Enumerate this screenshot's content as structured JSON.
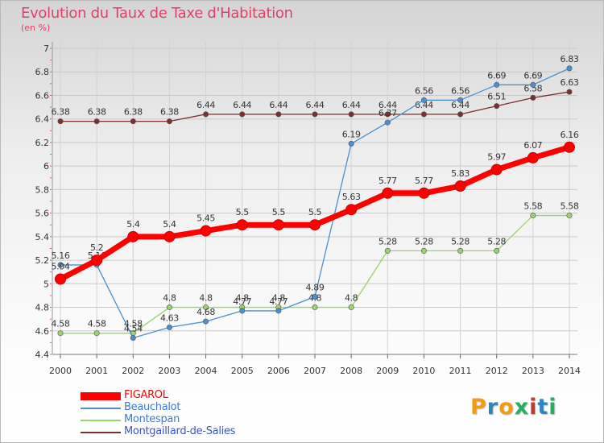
{
  "header": {
    "title": "Evolution du Taux de Taxe d'Habitation",
    "unit": "(en %)"
  },
  "logo": {
    "letters": [
      "P",
      "r",
      "o",
      "x",
      "i",
      "t",
      "i"
    ],
    "colors": [
      "#f39c12",
      "#2e86c1",
      "#f39c12",
      "#27ae60",
      "#c0392b",
      "#2e86c1",
      "#27ae60"
    ]
  },
  "chart_data": {
    "type": "line",
    "title": "Evolution du Taux de Taxe d'Habitation",
    "ylabel": "(en %)",
    "xlabel": "",
    "ylim": [
      4.4,
      7.0
    ],
    "yticks": [
      "4.4",
      "4.6",
      "4.8",
      "5",
      "5.2",
      "5.4",
      "5.6",
      "5.8",
      "6",
      "6.2",
      "6.4",
      "6.6",
      "6.8",
      "7"
    ],
    "grid": true,
    "legend_position": "bottom-left",
    "x": [
      2000,
      2001,
      2002,
      2003,
      2004,
      2005,
      2006,
      2007,
      2008,
      2009,
      2010,
      2011,
      2012,
      2013,
      2014
    ],
    "series": [
      {
        "name": "FIGAROL",
        "color": "#ff0000",
        "values": [
          5.04,
          5.2,
          5.4,
          5.4,
          5.45,
          5.5,
          5.5,
          5.5,
          5.63,
          5.77,
          5.77,
          5.83,
          5.97,
          6.07,
          6.16
        ],
        "labels": [
          "5.04",
          "5.2",
          "5.4",
          "5.4",
          "5.45",
          "5.5",
          "5.5",
          "5.5",
          "5.63",
          "5.77",
          "5.77",
          "5.83",
          "5.97",
          "6.07",
          "6.16"
        ]
      },
      {
        "name": "Beauchalot",
        "color": "#4a90d0",
        "values": [
          5.16,
          5.16,
          4.54,
          4.63,
          4.68,
          4.77,
          4.77,
          4.89,
          6.19,
          6.37,
          6.56,
          6.56,
          6.69,
          6.69,
          6.83
        ],
        "labels": [
          "5.16",
          "5.16",
          "4.54",
          "4.63",
          "4.68",
          "4.77",
          "4.77",
          "4.89",
          "6.19",
          "6.37",
          "6.56",
          "6.56",
          "6.69",
          "6.69",
          "6.83"
        ]
      },
      {
        "name": "Montespan",
        "color": "#9ad46a",
        "values": [
          4.58,
          4.58,
          4.58,
          4.8,
          4.8,
          4.8,
          4.8,
          4.8,
          4.8,
          5.28,
          5.28,
          5.28,
          5.28,
          5.58,
          5.58
        ],
        "labels": [
          "4.58",
          "4.58",
          "4.58",
          "4.8",
          "4.8",
          "4.8",
          "4.8",
          "4.8",
          "4.8",
          "5.28",
          "5.28",
          "5.28",
          "5.28",
          "5.58",
          "5.58"
        ]
      },
      {
        "name": "Montgaillard-de-Salies",
        "color": "#7b2f2f",
        "values": [
          6.38,
          6.38,
          6.38,
          6.38,
          6.44,
          6.44,
          6.44,
          6.44,
          6.44,
          6.44,
          6.44,
          6.44,
          6.51,
          6.58,
          6.63
        ],
        "labels": [
          "6.38",
          "6.38",
          "6.38",
          "6.38",
          "6.44",
          "6.44",
          "6.44",
          "6.44",
          "6.44",
          "6.44",
          "6.44",
          "6.44",
          "6.51",
          "6.58",
          "6.63"
        ]
      }
    ]
  }
}
